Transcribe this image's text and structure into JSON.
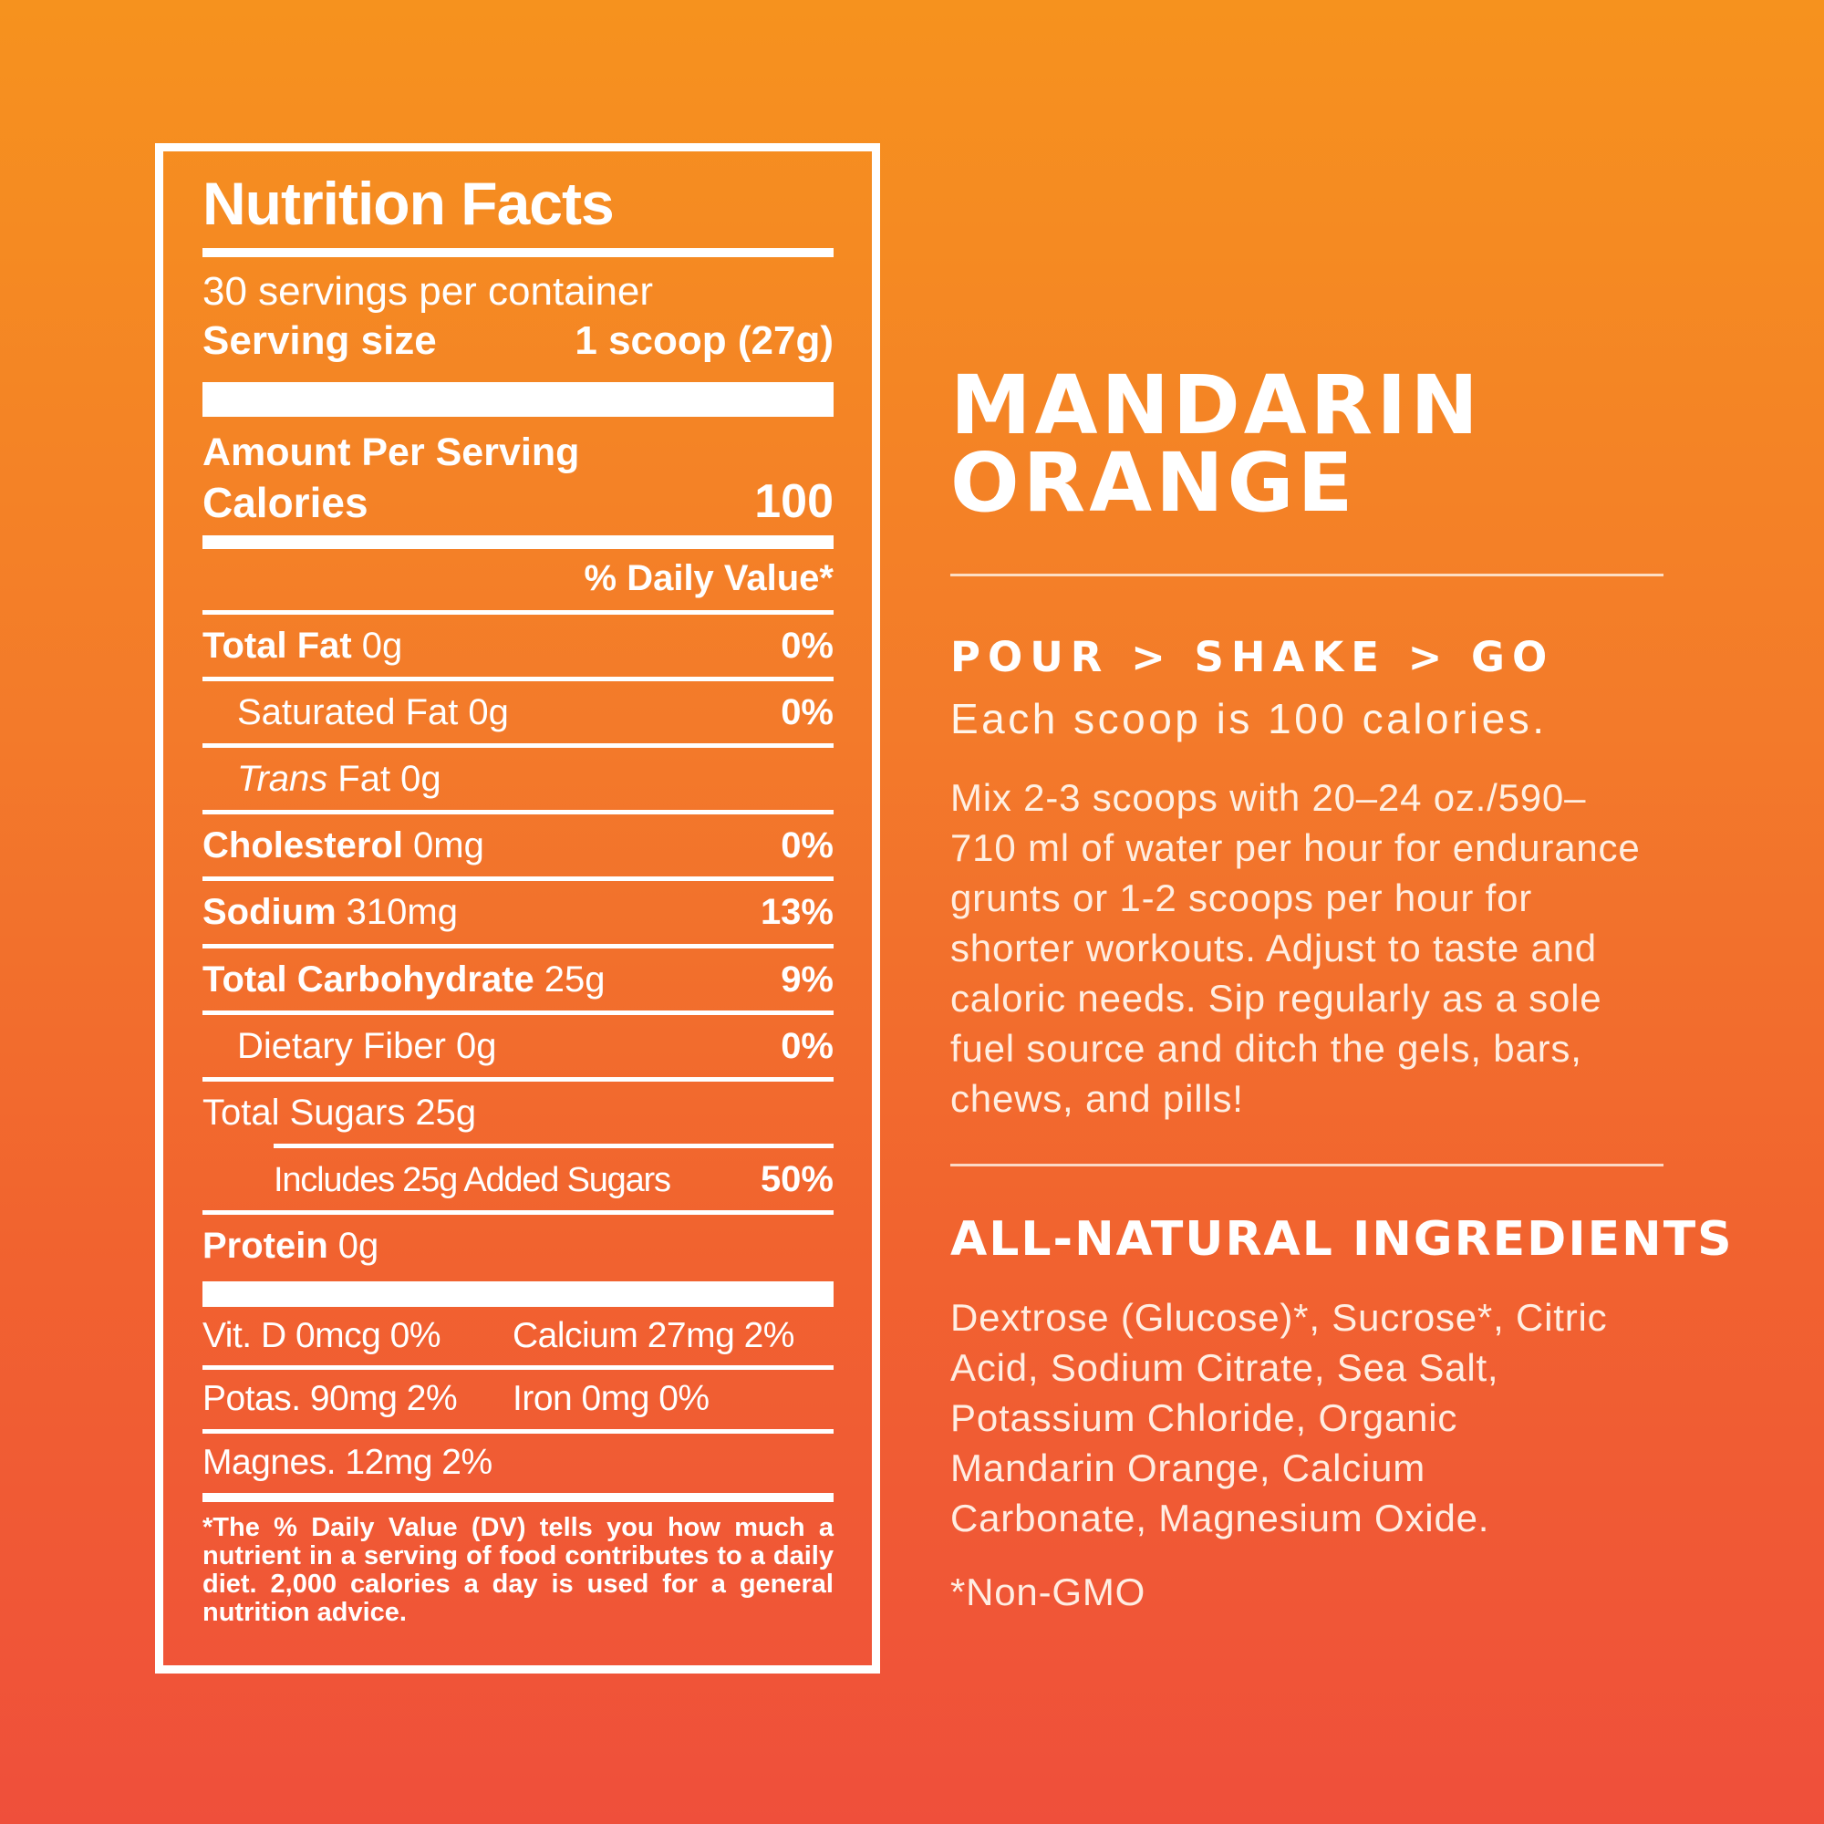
{
  "background": {
    "top_color": "#F6921E",
    "bottom_color": "#EF4F3B"
  },
  "nutrition_panel": {
    "title": "Nutrition Facts",
    "servings_per_container": "30 servings per container",
    "serving_size_label": "Serving size",
    "serving_size_value": "1 scoop (27g)",
    "amount_per_serving": "Amount Per Serving",
    "calories_label": "Calories",
    "calories_value": "100",
    "daily_value_header": "% Daily Value*",
    "rows": [
      {
        "name": "Total Fat",
        "amount": "0g",
        "dv": "0%"
      },
      {
        "name": "Saturated Fat",
        "amount": "0g",
        "dv": "0%"
      },
      {
        "italic": "Trans",
        "name": "Fat",
        "amount": "0g",
        "dv": ""
      },
      {
        "name": "Cholesterol",
        "amount": "0mg",
        "dv": "0%"
      },
      {
        "name": "Sodium",
        "amount": "310mg",
        "dv": "13%"
      },
      {
        "name": "Total Carbohydrate",
        "amount": "25g",
        "dv": "9%"
      },
      {
        "name": "Dietary Fiber",
        "amount": "0g",
        "dv": "0%"
      },
      {
        "name": "Total Sugars",
        "amount": "25g",
        "dv": ""
      },
      {
        "name": "Includes 25g Added Sugars",
        "amount": "",
        "dv": "50%"
      },
      {
        "name": "Protein",
        "amount": "0g",
        "dv": ""
      }
    ],
    "micros": [
      [
        "Vit. D 0mcg 0%",
        "Calcium 27mg 2%"
      ],
      [
        "Potas. 90mg 2%",
        "Iron 0mg 0%"
      ],
      [
        "Magnes. 12mg 2%",
        ""
      ]
    ],
    "footnote": "*The % Daily Value (DV) tells you how much a nutrient in a serving of food contributes to a daily diet. 2,000 calories a day is used for a general nutrition advice."
  },
  "flavor_panel": {
    "flavor_line1": "MANDARIN",
    "flavor_line2": "ORANGE",
    "usage_heading": "POUR > SHAKE > GO",
    "usage_subheading": "Each scoop is 100 calories.",
    "usage_body": "Mix 2-3 scoops with 20–24 oz./590–710 ml of water per hour for endurance grunts or 1-2 scoops per hour for shorter workouts. Adjust to taste and caloric needs. Sip regularly as a sole fuel source and ditch the gels, bars, chews, and pills!",
    "ingredients_heading": "ALL-NATURAL INGREDIENTS",
    "ingredients_body": "Dextrose (Glucose)*, Sucrose*, Citric Acid, Sodium Citrate, Sea Salt, Potassium Chloride, Organic Mandarin Orange, Calcium Carbonate, Magnesium Oxide.",
    "ingredients_note": "*Non-GMO"
  }
}
